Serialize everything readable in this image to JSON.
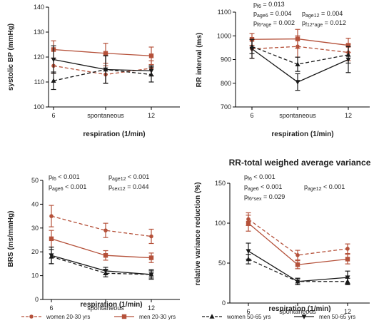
{
  "colors": {
    "young": "#b5513a",
    "old": "#1a1a1a"
  },
  "legend": [
    {
      "label": "women 20-30 yrs",
      "color": "#b5513a",
      "dash": "dashed",
      "marker": "circle"
    },
    {
      "label": "men 20-30 yrs",
      "color": "#b5513a",
      "dash": "solid",
      "marker": "square"
    },
    {
      "label": "women 50-65 yrs",
      "color": "#1a1a1a",
      "dash": "dashed",
      "marker": "triangle-up"
    },
    {
      "label": "men 50-65 yrs",
      "color": "#1a1a1a",
      "dash": "solid",
      "marker": "triangle-down"
    }
  ],
  "chart_data": [
    {
      "type": "line",
      "title": "",
      "xlabel": "respiration (1/min)",
      "ylabel": "systolic BP (mmHg)",
      "categories": [
        "6",
        "spontaneous",
        "12"
      ],
      "ylim": [
        100,
        140
      ],
      "yticks": [
        100,
        110,
        120,
        130,
        140
      ],
      "annotations": [],
      "series": [
        {
          "name": "women 20-30 yrs",
          "values": [
            116.5,
            113,
            115.5
          ],
          "errors": [
            3,
            3.5,
            3
          ]
        },
        {
          "name": "men 20-30 yrs",
          "values": [
            123,
            121.5,
            120.5
          ],
          "errors": [
            3.5,
            4,
            3.5
          ]
        },
        {
          "name": "women 50-65 yrs",
          "values": [
            110.5,
            115,
            113
          ],
          "errors": [
            3.5,
            5.5,
            3
          ]
        },
        {
          "name": "men 50-65 yrs",
          "values": [
            119,
            115,
            114.5
          ],
          "errors": [
            5.5,
            5.5,
            2
          ]
        }
      ]
    },
    {
      "type": "line",
      "title": "",
      "xlabel": "respiration (1/min)",
      "ylabel": "RR interval (ms)",
      "categories": [
        "6",
        "spontaneous",
        "12"
      ],
      "ylim": [
        700,
        1100
      ],
      "yticks": [
        700,
        800,
        900,
        1000,
        1100
      ],
      "annotations": [
        [
          {
            "t": "p",
            "s": "f6"
          },
          {
            "t": " = 0.013"
          }
        ],
        [
          {
            "t": "p",
            "s": "age6"
          },
          {
            "t": " = 0.004"
          }
        ],
        [
          {
            "t": "p",
            "s": "f6*age"
          },
          {
            "t": " = 0.002"
          }
        ],
        [
          {
            "t": "p",
            "s": "age12"
          },
          {
            "t": " = 0.004"
          }
        ],
        [
          {
            "t": "p",
            "s": "f12*age"
          },
          {
            "t": " = 0.012"
          }
        ]
      ],
      "series": [
        {
          "name": "women 20-30 yrs",
          "values": [
            945,
            955,
            930
          ],
          "errors": [
            40,
            45,
            35
          ]
        },
        {
          "name": "men 20-30 yrs",
          "values": [
            985,
            987,
            960
          ],
          "errors": [
            25,
            40,
            30
          ]
        },
        {
          "name": "women 50-65 yrs",
          "values": [
            955,
            880,
            920
          ],
          "errors": [
            30,
            30,
            35
          ]
        },
        {
          "name": "men 50-65 yrs",
          "values": [
            945,
            805,
            900
          ],
          "errors": [
            40,
            35,
            55
          ]
        }
      ]
    },
    {
      "type": "line",
      "title": "",
      "xlabel": "respiration (1/min)",
      "ylabel": "BRS (ms/mmHg)",
      "categories": [
        "6",
        "spontaneous",
        "12"
      ],
      "ylim": [
        0,
        50
      ],
      "yticks": [
        0,
        10,
        20,
        30,
        40,
        50
      ],
      "annotations": [
        [
          {
            "t": "p",
            "s": "f6"
          },
          {
            "t": " < 0.001"
          }
        ],
        [
          {
            "t": "p",
            "s": "age6"
          },
          {
            "t": " < 0.001"
          }
        ],
        [
          {
            "t": "p",
            "s": "age12"
          },
          {
            "t": " < 0.001"
          }
        ],
        [
          {
            "t": "p",
            "s": "sex12"
          },
          {
            "t": " = 0.044"
          }
        ]
      ],
      "series": [
        {
          "name": "women 20-30 yrs",
          "values": [
            35,
            29,
            26.5
          ],
          "errors": [
            4.5,
            3,
            3
          ]
        },
        {
          "name": "men 20-30 yrs",
          "values": [
            25.5,
            18.5,
            17.5
          ],
          "errors": [
            3.5,
            2,
            2
          ]
        },
        {
          "name": "women 50-65 yrs",
          "values": [
            18,
            11,
            10.5
          ],
          "errors": [
            3,
            1.5,
            1.5
          ]
        },
        {
          "name": "men 50-65 yrs",
          "values": [
            18.5,
            12,
            10.5
          ],
          "errors": [
            3.5,
            1.5,
            2
          ]
        }
      ]
    },
    {
      "type": "line",
      "title": "RR-total weighed average variance",
      "xlabel": "respiration (1/min)",
      "ylabel": "relative variance reduction (%)",
      "categories": [
        "6",
        "spontaneous",
        "12"
      ],
      "ylim": [
        0,
        150
      ],
      "yticks": [
        0,
        50,
        100,
        150
      ],
      "annotations": [
        [
          {
            "t": "p",
            "s": "f6"
          },
          {
            "t": " < 0.001"
          }
        ],
        [
          {
            "t": "p",
            "s": "age6"
          },
          {
            "t": " < 0.001"
          }
        ],
        [
          {
            "t": "p",
            "s": "f6*sex"
          },
          {
            "t": " = 0.029"
          }
        ],
        [
          {
            "t": "p",
            "s": "age12"
          },
          {
            "t": " < 0.001"
          }
        ]
      ],
      "series": [
        {
          "name": "women 20-30 yrs",
          "values": [
            105,
            60,
            68
          ],
          "errors": [
            8,
            6,
            6
          ]
        },
        {
          "name": "men 20-30 yrs",
          "values": [
            100,
            48,
            55
          ],
          "errors": [
            10,
            5,
            6
          ]
        },
        {
          "name": "women 50-65 yrs",
          "values": [
            55,
            27,
            27
          ],
          "errors": [
            6,
            4,
            4
          ]
        },
        {
          "name": "men 50-65 yrs",
          "values": [
            65,
            27,
            32
          ],
          "errors": [
            10,
            4,
            8
          ]
        }
      ]
    }
  ]
}
